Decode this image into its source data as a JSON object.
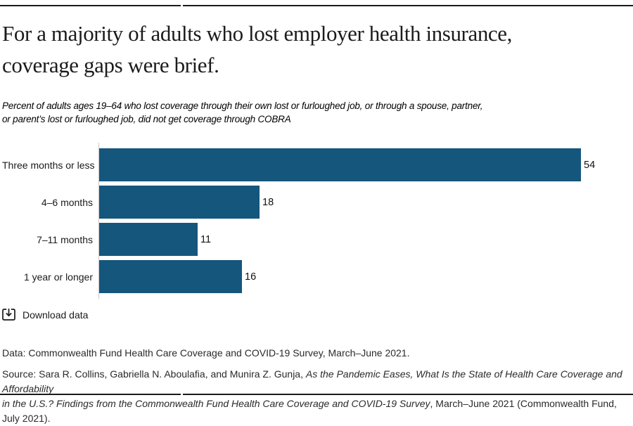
{
  "header": {
    "title_line1": "For a majority of adults who lost employer health insurance,",
    "title_line2": "coverage gaps were brief.",
    "subtitle_line1": "Percent of adults ages 19–64 who lost coverage through their own lost or furloughed job, or through a spouse, partner,",
    "subtitle_line2": "or parent’s lost or furloughed job, did not get coverage through COBRA"
  },
  "chart_data": {
    "type": "bar",
    "orientation": "horizontal",
    "title": "For a majority of adults who lost employer health insurance, coverage gaps were brief.",
    "subtitle": "Percent of adults ages 19–64 who lost coverage through their own lost or furloughed job, or through a spouse, partner, or parent’s lost or furloughed job, did not get coverage through COBRA",
    "categories": [
      "Three months or less",
      "4–6 months",
      "7–11 months",
      "1 year or longer"
    ],
    "values": [
      54,
      18,
      11,
      16
    ],
    "value_labels_shown": true,
    "xlabel": "",
    "ylabel": "",
    "xlim": [
      0,
      60
    ],
    "grid": false,
    "legend": "none",
    "bar_color": "#15567D",
    "axis_line_color": "#c9c9c9"
  },
  "footer": {
    "download_label": "Download data",
    "download_icon": "download-tray-icon",
    "data_note": "Data: Commonwealth Fund Health Care Coverage and COVID-19 Survey, March–June 2021.",
    "source_lines": [
      [
        {
          "text": "Source: Sara R. Collins, Gabriella N. Aboulafia, and Munira Z. Gunja, ",
          "italic": false
        },
        {
          "text": "As the Pandemic Eases, What Is the State of Health Care Coverage and Affordability",
          "italic": true
        }
      ],
      [
        {
          "text": "in the U.S.? Findings from the Commonwealth Fund Health Care Coverage and COVID-19 Survey",
          "italic": true
        },
        {
          "text": ", March–June 2021 (Commonwealth Fund, July 2021).",
          "italic": false
        }
      ]
    ]
  },
  "colors": {
    "rule": "#1a1a1a",
    "bar": "#15567D",
    "axis_line": "#c9c9c9",
    "text": "#1a1a1a"
  }
}
